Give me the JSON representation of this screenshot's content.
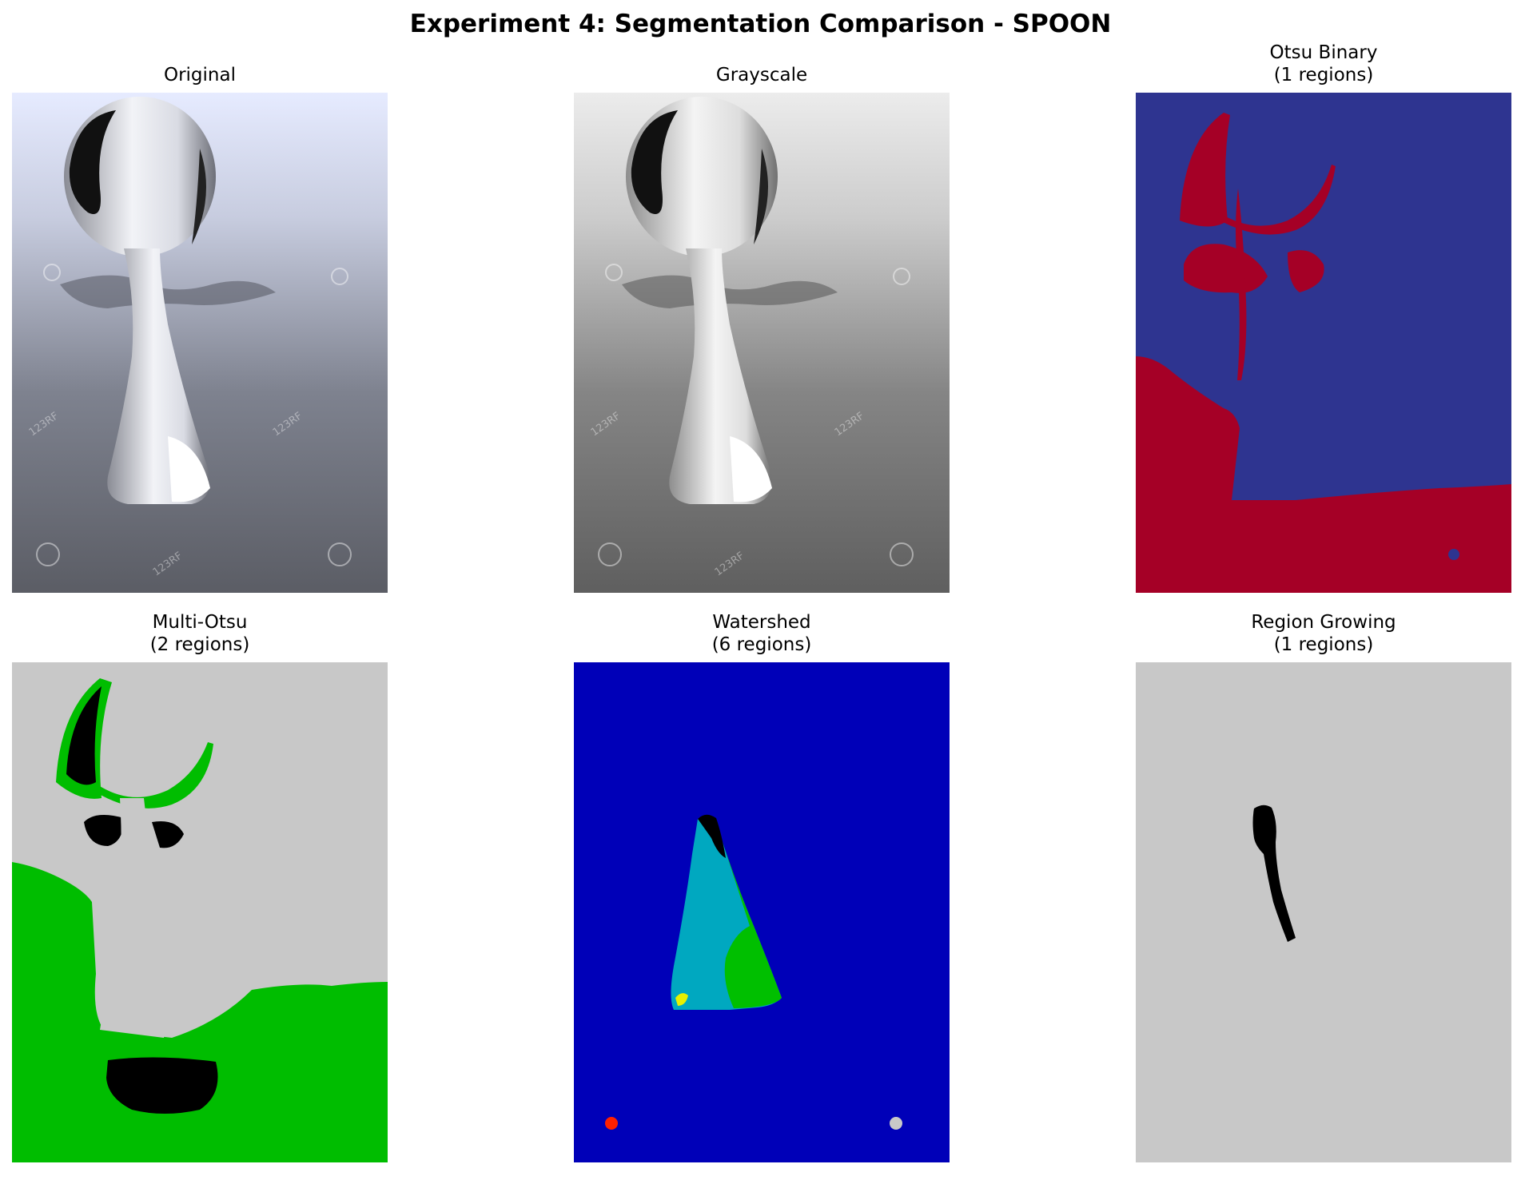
{
  "figure": {
    "title": "Experiment 4: Segmentation Comparison - SPOON"
  },
  "panels": [
    {
      "title_line1": "Original",
      "title_line2": ""
    },
    {
      "title_line1": "Grayscale",
      "title_line2": ""
    },
    {
      "title_line1": "Otsu Binary",
      "title_line2": "(1 regions)"
    },
    {
      "title_line1": "Multi-Otsu",
      "title_line2": "(2 regions)"
    },
    {
      "title_line1": "Watershed",
      "title_line2": "(6 regions)"
    },
    {
      "title_line1": "Region Growing",
      "title_line2": "(1 regions)"
    }
  ],
  "watermark": {
    "text": "123RF"
  },
  "colors": {
    "otsu_background": "#2e3490",
    "otsu_foreground": "#a50026",
    "multiotsu_light": "#c8c8c8",
    "multiotsu_mid": "#00bd00",
    "multiotsu_dark": "#000000",
    "watershed_background": "#0000b8",
    "watershed_cyan": "#00a8c0",
    "watershed_green": "#00bf00",
    "watershed_black": "#000000",
    "watershed_yellow": "#e6f000",
    "watershed_red": "#ff2000",
    "watershed_gray": "#c8c8c8",
    "region_background": "#c8c8c8",
    "region_foreground": "#000000"
  }
}
